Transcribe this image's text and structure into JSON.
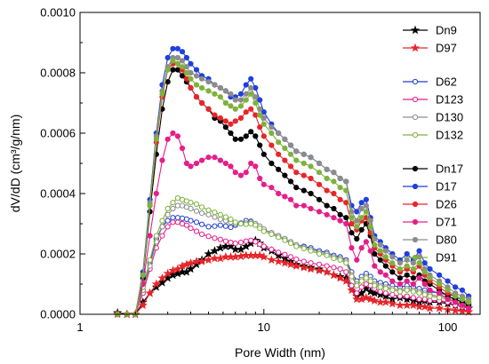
{
  "chart_data": {
    "type": "line",
    "xscale": "log",
    "xlim": [
      1,
      150
    ],
    "ylim": [
      0,
      0.001
    ],
    "xlabel": "Pore Width (nm)",
    "ylabel": "dV/dD (cm³/g/nm)",
    "xticks": [
      "1",
      "10",
      "100"
    ],
    "yticks": [
      "0.0000",
      "0.0002",
      "0.0004",
      "0.0006",
      "0.0008",
      "0.0010"
    ],
    "grid": false,
    "legend_position": "top-right",
    "x": [
      1.6,
      1.8,
      2.0,
      2.2,
      2.4,
      2.6,
      2.8,
      3.0,
      3.2,
      3.4,
      3.6,
      3.8,
      4.0,
      4.3,
      4.6,
      5.0,
      5.4,
      5.8,
      6.2,
      6.6,
      7.0,
      7.5,
      8.0,
      8.5,
      9.0,
      9.5,
      10.0,
      11.0,
      12.0,
      13.0,
      14.0,
      15.0,
      16.5,
      18.0,
      20.0,
      22.0,
      24.0,
      26.0,
      28.0,
      30.0,
      32.0,
      34.0,
      36.0,
      38.0,
      40.0,
      43.0,
      46.0,
      50.0,
      55.0,
      60.0,
      65.0,
      70.0,
      75.0,
      80.0,
      90.0,
      100.0,
      110.0,
      120.0,
      130.0
    ],
    "series": [
      {
        "name": "Dn9",
        "color": "#000000",
        "marker": "star",
        "fill": true,
        "values": [
          5e-06,
          0,
          0,
          4e-05,
          7e-05,
          9e-05,
          0.000105,
          0.00012,
          0.00013,
          0.000135,
          0.00014,
          0.00014,
          0.00015,
          0.000165,
          0.00018,
          0.0002,
          0.00021,
          0.00022,
          0.000225,
          0.000225,
          0.000215,
          0.000215,
          0.000225,
          0.000235,
          0.000245,
          0.000235,
          0.00022,
          0.00021,
          0.000195,
          0.000185,
          0.000175,
          0.000165,
          0.00016,
          0.000155,
          0.00015,
          0.00014,
          0.00013,
          0.000125,
          0.00012,
          9e-05,
          6e-05,
          7e-05,
          8.5e-05,
          7.5e-05,
          7e-05,
          6.5e-05,
          6e-05,
          5e-05,
          5.5e-05,
          5e-05,
          4.5e-05,
          4e-05,
          4.5e-05,
          4e-05,
          4e-05,
          3.5e-05,
          3e-05,
          2.5e-05,
          2e-05
        ]
      },
      {
        "name": "D97",
        "color": "#e8252a",
        "marker": "star",
        "fill": true,
        "values": [
          0,
          0,
          0,
          3e-05,
          7e-05,
          0.0001,
          0.00012,
          0.000135,
          0.000145,
          0.00015,
          0.00016,
          0.000165,
          0.00017,
          0.000175,
          0.000175,
          0.00018,
          0.000185,
          0.000185,
          0.00019,
          0.00019,
          0.00019,
          0.000192,
          0.000195,
          0.000195,
          0.000195,
          0.000195,
          0.00019,
          0.00018,
          0.000175,
          0.00017,
          0.000165,
          0.00016,
          0.000155,
          0.00015,
          0.000145,
          0.00014,
          0.00013,
          0.00012,
          0.00011,
          8e-05,
          5e-05,
          5e-05,
          5.5e-05,
          5e-05,
          4.5e-05,
          4e-05,
          4e-05,
          3.5e-05,
          3e-05,
          3e-05,
          3e-05,
          2.5e-05,
          2.5e-05,
          2e-05,
          2e-05,
          1.5e-05,
          1.2e-05,
          1e-05,
          8e-06
        ]
      },
      {
        "name": "D62",
        "color": "#1f3fd0",
        "marker": "circle",
        "fill": false,
        "values": [
          0,
          0,
          0,
          8e-05,
          0.00017,
          0.00025,
          0.00029,
          0.00031,
          0.00032,
          0.00032,
          0.000318,
          0.000315,
          0.00031,
          0.000305,
          0.000298,
          0.00029,
          0.000292,
          0.000295,
          0.000292,
          0.000288,
          0.000295,
          0.000302,
          0.00031,
          0.000308,
          0.0003,
          0.00029,
          0.00028,
          0.00027,
          0.00026,
          0.00025,
          0.00024,
          0.00023,
          0.000225,
          0.00022,
          0.00021,
          0.000205,
          0.000195,
          0.00019,
          0.00018,
          0.00014,
          0.00011,
          0.000125,
          0.000135,
          0.000125,
          0.00011,
          0.000105,
          0.0001,
          9.5e-05,
          9e-05,
          9.5e-05,
          9e-05,
          8.5e-05,
          8e-05,
          7.5e-05,
          7e-05,
          6.5e-05,
          6e-05,
          4.5e-05,
          3.5e-05
        ]
      },
      {
        "name": "D123",
        "color": "#e61e8a",
        "marker": "circle",
        "fill": false,
        "values": [
          0,
          0,
          0,
          7e-05,
          0.00015,
          0.00022,
          0.00026,
          0.00029,
          0.000305,
          0.000305,
          0.0003,
          0.000295,
          0.000285,
          0.000275,
          0.000265,
          0.000258,
          0.000252,
          0.000248,
          0.000242,
          0.000238,
          0.000235,
          0.000238,
          0.000242,
          0.000245,
          0.00024,
          0.000232,
          0.000225,
          0.000215,
          0.000205,
          0.000198,
          0.00019,
          0.000182,
          0.000175,
          0.00017,
          0.000165,
          0.00016,
          0.000155,
          0.00015,
          0.00014,
          9.5e-05,
          7e-05,
          9e-05,
          0.0001,
          9.5e-05,
          8.5e-05,
          7.5e-05,
          7e-05,
          6.5e-05,
          6e-05,
          6e-05,
          5.5e-05,
          5e-05,
          5e-05,
          4.5e-05,
          4.5e-05,
          4e-05,
          3e-05,
          2.5e-05,
          2e-05
        ]
      },
      {
        "name": "D130",
        "color": "#8c8c8c",
        "marker": "circle",
        "fill": false,
        "values": [
          0,
          0,
          0,
          8e-05,
          0.00016,
          0.00024,
          0.00029,
          0.00033,
          0.00035,
          0.00036,
          0.00036,
          0.000355,
          0.00035,
          0.000342,
          0.000335,
          0.00033,
          0.000322,
          0.000315,
          0.00031,
          0.000305,
          0.0003,
          0.0003,
          0.000302,
          0.000305,
          0.0003,
          0.000292,
          0.000282,
          0.00027,
          0.00026,
          0.00025,
          0.00024,
          0.00023,
          0.000222,
          0.000215,
          0.000205,
          0.0002,
          0.00019,
          0.000185,
          0.000175,
          0.00013,
          0.0001,
          0.000115,
          0.000125,
          0.000115,
          0.0001,
          9.5e-05,
          9e-05,
          8.5e-05,
          8e-05,
          8.5e-05,
          8e-05,
          7.5e-05,
          7e-05,
          6.5e-05,
          6e-05,
          5.5e-05,
          5e-05,
          4e-05,
          3e-05
        ]
      },
      {
        "name": "D132",
        "color": "#7fb13c",
        "marker": "circle",
        "fill": false,
        "values": [
          0,
          0,
          0,
          9e-05,
          0.00018,
          0.00026,
          0.00031,
          0.00035,
          0.00037,
          0.000385,
          0.00038,
          0.000375,
          0.00037,
          0.000365,
          0.000355,
          0.000345,
          0.000338,
          0.00033,
          0.000322,
          0.000315,
          0.000305,
          0.0003,
          0.000298,
          0.0003,
          0.000295,
          0.000285,
          0.000275,
          0.000265,
          0.000255,
          0.000245,
          0.000235,
          0.000225,
          0.000218,
          0.00021,
          0.0002,
          0.000195,
          0.000185,
          0.00018,
          0.00017,
          0.000125,
          9.5e-05,
          0.00011,
          0.00012,
          0.00011,
          9.5e-05,
          9e-05,
          8.5e-05,
          8e-05,
          7.5e-05,
          8e-05,
          7.5e-05,
          7e-05,
          6.5e-05,
          6e-05,
          5.5e-05,
          5e-05,
          4.5e-05,
          3.5e-05,
          2.5e-05
        ]
      },
      {
        "name": "Dn17",
        "color": "#000000",
        "marker": "circle",
        "fill": true,
        "values": [
          0,
          0,
          0,
          0.00012,
          0.00034,
          0.00053,
          0.00068,
          0.00077,
          0.00081,
          0.00081,
          0.00079,
          0.00077,
          0.00075,
          0.00072,
          0.0007,
          0.00068,
          0.00065,
          0.00064,
          0.00062,
          0.0006,
          0.00058,
          0.00058,
          0.00059,
          0.000605,
          0.00059,
          0.00056,
          0.00053,
          0.0005,
          0.00048,
          0.00046,
          0.00044,
          0.00042,
          0.00041,
          0.0004,
          0.00038,
          0.00036,
          0.00035,
          0.00033,
          0.00032,
          0.00027,
          0.00025,
          0.00028,
          0.0003,
          0.00026,
          0.0002,
          0.00018,
          0.00016,
          0.00014,
          0.00012,
          0.00013,
          0.00012,
          0.00013,
          0.00011,
          0.0001,
          8e-05,
          6e-05,
          5e-05,
          4e-05,
          3e-05
        ]
      },
      {
        "name": "D17",
        "color": "#1f3fe0",
        "marker": "circle",
        "fill": true,
        "values": [
          0,
          0,
          0,
          0.00014,
          0.00038,
          0.0006,
          0.00076,
          0.00085,
          0.00088,
          0.00088,
          0.00087,
          0.00085,
          0.00083,
          0.00081,
          0.00079,
          0.00078,
          0.00076,
          0.00075,
          0.00074,
          0.00072,
          0.00072,
          0.00073,
          0.00076,
          0.00078,
          0.00075,
          0.00071,
          0.00067,
          0.00063,
          0.0006,
          0.00058,
          0.00056,
          0.00054,
          0.00053,
          0.00052,
          0.0005,
          0.00048,
          0.00047,
          0.00045,
          0.00044,
          0.00036,
          0.00034,
          0.00037,
          0.00038,
          0.00032,
          0.00026,
          0.00024,
          0.00022,
          0.0002,
          0.00018,
          0.0002,
          0.00018,
          0.00021,
          0.00017,
          0.00015,
          0.00013,
          0.00011,
          9e-05,
          8e-05,
          6e-05
        ]
      },
      {
        "name": "D26",
        "color": "#e8252a",
        "marker": "circle",
        "fill": true,
        "values": [
          0,
          0,
          0,
          0.00013,
          0.00036,
          0.00057,
          0.00072,
          0.00081,
          0.00083,
          0.00083,
          0.00081,
          0.00078,
          0.00075,
          0.00072,
          0.0007,
          0.00068,
          0.00066,
          0.00065,
          0.00064,
          0.00063,
          0.00064,
          0.00065,
          0.00067,
          0.00068,
          0.00066,
          0.00062,
          0.00059,
          0.00056,
          0.00053,
          0.00051,
          0.00049,
          0.00047,
          0.00046,
          0.00045,
          0.00043,
          0.00041,
          0.0004,
          0.00038,
          0.00037,
          0.0003,
          0.00028,
          0.00031,
          0.00032,
          0.00027,
          0.00022,
          0.0002,
          0.00018,
          0.00016,
          0.00014,
          0.00015,
          0.00014,
          0.00016,
          0.00013,
          0.00011,
          9e-05,
          7e-05,
          6e-05,
          5e-05,
          4e-05
        ]
      },
      {
        "name": "D71",
        "color": "#e61e8a",
        "marker": "circle",
        "fill": true,
        "values": [
          0,
          0,
          0,
          0.0001,
          0.00026,
          0.0004,
          0.00051,
          0.00058,
          0.0006,
          0.00059,
          0.00055,
          0.0005,
          0.00049,
          0.0005,
          0.00051,
          0.00052,
          0.00052,
          0.00051,
          0.0005,
          0.00049,
          0.00047,
          0.00046,
          0.00047,
          0.0005,
          0.00049,
          0.00045,
          0.00043,
          0.00042,
          0.0004,
          0.00039,
          0.00038,
          0.00036,
          0.00036,
          0.00035,
          0.00034,
          0.00033,
          0.00032,
          0.00031,
          0.0003,
          0.00022,
          0.00018,
          0.00022,
          0.00024,
          0.00021,
          0.00016,
          0.00014,
          0.00013,
          0.00011,
          0.0001,
          0.00011,
          0.0001,
          0.00012,
          0.0001,
          8e-05,
          7e-05,
          5e-05,
          4e-05,
          3e-05,
          2e-05
        ]
      },
      {
        "name": "D80",
        "color": "#8c8c8c",
        "marker": "circle",
        "fill": true,
        "values": [
          0,
          0,
          0,
          0.00013,
          0.00037,
          0.00059,
          0.00074,
          0.00082,
          0.00085,
          0.00085,
          0.00084,
          0.00082,
          0.0008,
          0.00079,
          0.00078,
          0.00077,
          0.00076,
          0.00075,
          0.00074,
          0.00073,
          0.00071,
          0.00071,
          0.00073,
          0.00075,
          0.00072,
          0.00068,
          0.00065,
          0.00062,
          0.0006,
          0.00058,
          0.00056,
          0.00054,
          0.00053,
          0.00052,
          0.0005,
          0.00048,
          0.00047,
          0.00045,
          0.00044,
          0.00034,
          0.00031,
          0.00035,
          0.00036,
          0.00031,
          0.00025,
          0.00023,
          0.00021,
          0.00019,
          0.00017,
          0.00018,
          0.00017,
          0.00019,
          0.00015,
          0.00013,
          0.00011,
          9e-05,
          7e-05,
          6e-05,
          5e-05
        ]
      },
      {
        "name": "D91",
        "color": "#7fb13c",
        "marker": "circle",
        "fill": true,
        "values": [
          0,
          0,
          0,
          0.00013,
          0.00036,
          0.00058,
          0.00073,
          0.00081,
          0.00084,
          0.00083,
          0.00082,
          0.0008,
          0.00078,
          0.00076,
          0.00075,
          0.00074,
          0.00073,
          0.00072,
          0.0007,
          0.00069,
          0.00068,
          0.00069,
          0.00071,
          0.00073,
          0.0007,
          0.00066,
          0.00063,
          0.0006,
          0.00057,
          0.00055,
          0.00053,
          0.00051,
          0.0005,
          0.00049,
          0.00047,
          0.00045,
          0.00044,
          0.00042,
          0.00041,
          0.00032,
          0.00029,
          0.00032,
          0.00034,
          0.00029,
          0.00023,
          0.00021,
          0.00019,
          0.00017,
          0.00015,
          0.00016,
          0.00015,
          0.00017,
          0.00014,
          0.00012,
          0.0001,
          8e-05,
          6e-05,
          5e-05,
          4e-05
        ]
      }
    ],
    "legend_groups": [
      [
        "Dn9",
        "D97"
      ],
      [
        "D62",
        "D123",
        "D130",
        "D132"
      ],
      [
        "Dn17",
        "D17",
        "D26",
        "D71",
        "D80",
        "D91"
      ]
    ]
  }
}
